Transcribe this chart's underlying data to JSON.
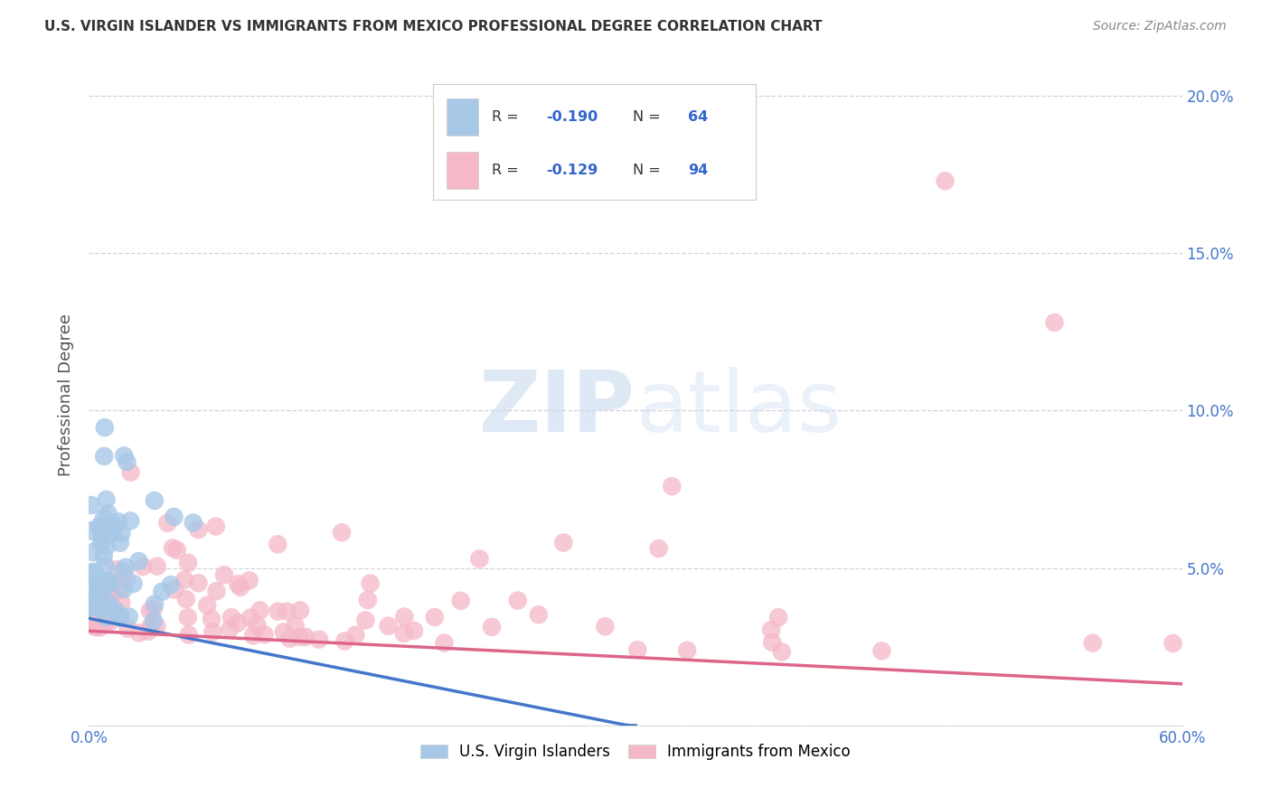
{
  "title": "U.S. VIRGIN ISLANDER VS IMMIGRANTS FROM MEXICO PROFESSIONAL DEGREE CORRELATION CHART",
  "source": "Source: ZipAtlas.com",
  "ylabel": "Professional Degree",
  "xlim": [
    0.0,
    0.6
  ],
  "ylim": [
    0.0,
    0.21
  ],
  "xtick_positions": [
    0.0,
    0.1,
    0.2,
    0.3,
    0.4,
    0.5,
    0.6
  ],
  "xtick_labels": [
    "0.0%",
    "",
    "",
    "",
    "",
    "",
    "60.0%"
  ],
  "ytick_positions": [
    0.0,
    0.05,
    0.1,
    0.15,
    0.2
  ],
  "ytick_labels": [
    "",
    "5.0%",
    "10.0%",
    "15.0%",
    "20.0%"
  ],
  "legend1_R": "-0.190",
  "legend1_N": "64",
  "legend2_R": "-0.129",
  "legend2_N": "94",
  "color_blue": "#a8c8e8",
  "color_pink": "#f5b8c8",
  "color_blue_line": "#4477cc",
  "color_pink_line": "#dd6688",
  "color_dashed": "#9999bb",
  "background": "#ffffff",
  "grid_color": "#ccccdd",
  "watermark_zip": "ZIP",
  "watermark_atlas": "atlas",
  "title_color": "#333333",
  "source_color": "#888888",
  "tick_color": "#4477cc",
  "ylabel_color": "#555555",
  "legend_border_color": "#cccccc",
  "bottom_legend_label1": "U.S. Virgin Islanders",
  "bottom_legend_label2": "Immigrants from Mexico"
}
